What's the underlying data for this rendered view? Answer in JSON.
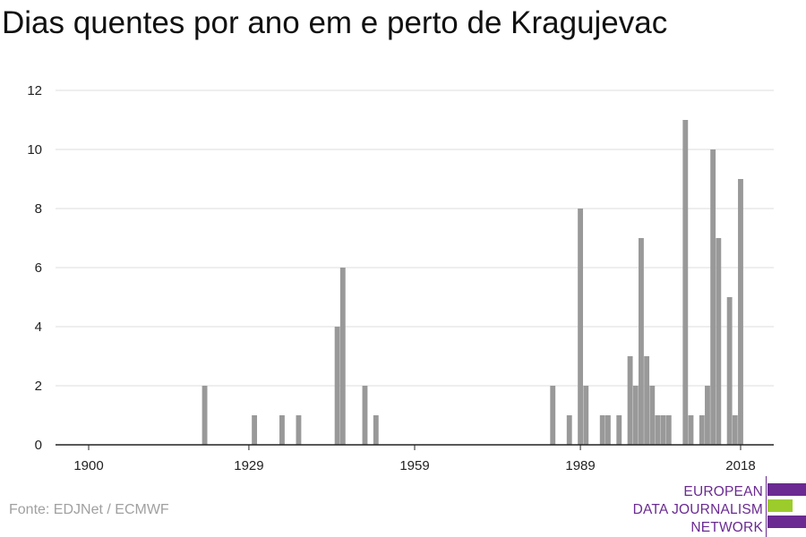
{
  "header": {
    "title": "Dias quentes por ano em e perto de Kragujevac"
  },
  "footer": {
    "source": "Fonte: EDJNet / ECMWF"
  },
  "logo": {
    "lines": [
      "EUROPEAN",
      "DATA JOURNALISM",
      "NETWORK"
    ],
    "colors": {
      "purple": "#6a2a92",
      "green": "#9ccc2c"
    }
  },
  "chart_data": {
    "type": "bar",
    "title": "Dias quentes por ano em e perto de Kragujevac",
    "xlabel": "",
    "ylabel": "",
    "xlim": [
      1894,
      2024
    ],
    "ylim": [
      0,
      12
    ],
    "yticks": [
      "0",
      "2",
      "4",
      "6",
      "8",
      "10",
      "12"
    ],
    "xticks": [
      "1900",
      "1929",
      "1959",
      "1989",
      "2018"
    ],
    "grid": true,
    "bar_color": "#999999",
    "x": [
      1921,
      1930,
      1935,
      1938,
      1945,
      1946,
      1950,
      1952,
      1984,
      1987,
      1989,
      1990,
      1993,
      1994,
      1996,
      1998,
      1999,
      2000,
      2001,
      2002,
      2003,
      2004,
      2005,
      2008,
      2009,
      2011,
      2012,
      2013,
      2014,
      2016,
      2017,
      2018
    ],
    "values": [
      2,
      1,
      1,
      1,
      4,
      6,
      2,
      1,
      2,
      1,
      8,
      2,
      1,
      1,
      1,
      3,
      2,
      7,
      3,
      2,
      1,
      1,
      1,
      11,
      1,
      1,
      2,
      10,
      7,
      5,
      1,
      9
    ]
  }
}
